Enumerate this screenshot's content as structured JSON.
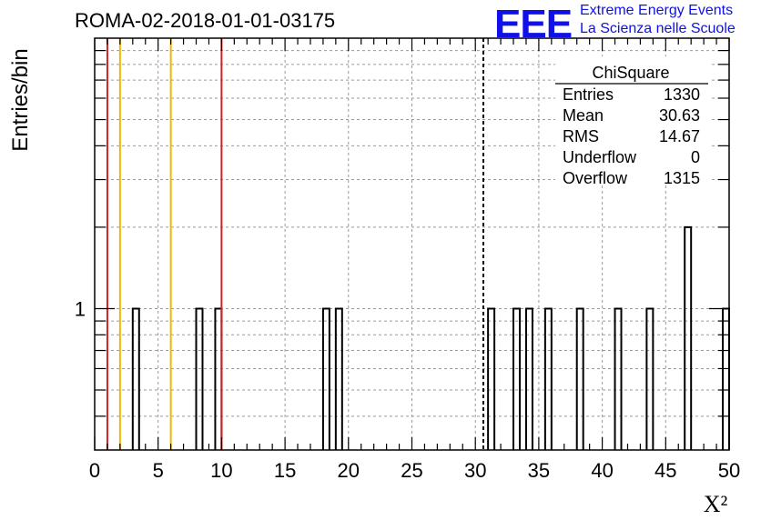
{
  "header": {
    "title": "ROMA-02-2018-01-01-03175",
    "logo_text": "EEE",
    "logo_line1": "Extreme Energy Events",
    "logo_line2": "La Scienza nelle Scuole"
  },
  "stats": {
    "title": "ChiSquare",
    "rows": [
      {
        "label": "Entries",
        "value": "1330"
      },
      {
        "label": "Mean",
        "value": "30.63"
      },
      {
        "label": "RMS",
        "value": "14.67"
      },
      {
        "label": "Underflow",
        "value": "0"
      },
      {
        "label": "Overflow",
        "value": "1315"
      }
    ]
  },
  "chart_data": {
    "type": "bar",
    "title": "ROMA-02-2018-01-01-03175",
    "xlabel": "X²",
    "ylabel": "Entries/bin",
    "xlim": [
      0,
      50
    ],
    "y_scale": "log",
    "ylim": [
      0.3,
      10
    ],
    "x_ticks": [
      "0",
      "5",
      "10",
      "15",
      "20",
      "25",
      "30",
      "35",
      "40",
      "45",
      "50"
    ],
    "y_ticks": [
      "1"
    ],
    "grid": true,
    "bin_width": 0.5,
    "bins": [
      {
        "x": 3.0,
        "value": 1
      },
      {
        "x": 8.0,
        "value": 1
      },
      {
        "x": 9.5,
        "value": 1
      },
      {
        "x": 18.0,
        "value": 1
      },
      {
        "x": 19.0,
        "value": 1
      },
      {
        "x": 31.0,
        "value": 1
      },
      {
        "x": 33.0,
        "value": 1
      },
      {
        "x": 34.0,
        "value": 1
      },
      {
        "x": 35.5,
        "value": 1
      },
      {
        "x": 38.0,
        "value": 1
      },
      {
        "x": 41.0,
        "value": 1
      },
      {
        "x": 43.5,
        "value": 1
      },
      {
        "x": 46.5,
        "value": 2
      },
      {
        "x": 49.5,
        "value": 1
      }
    ],
    "reference_lines": [
      {
        "x": 1.0,
        "color": "#d42020",
        "style": "solid"
      },
      {
        "x": 2.0,
        "color": "#f0b800",
        "style": "solid"
      },
      {
        "x": 6.0,
        "color": "#f0b800",
        "style": "solid"
      },
      {
        "x": 10.0,
        "color": "#d42020",
        "style": "solid"
      },
      {
        "x": 30.63,
        "color": "#000000",
        "style": "dashed"
      }
    ],
    "colors": {
      "bar_stroke": "#000000",
      "grid": "#9a9a9a"
    }
  }
}
